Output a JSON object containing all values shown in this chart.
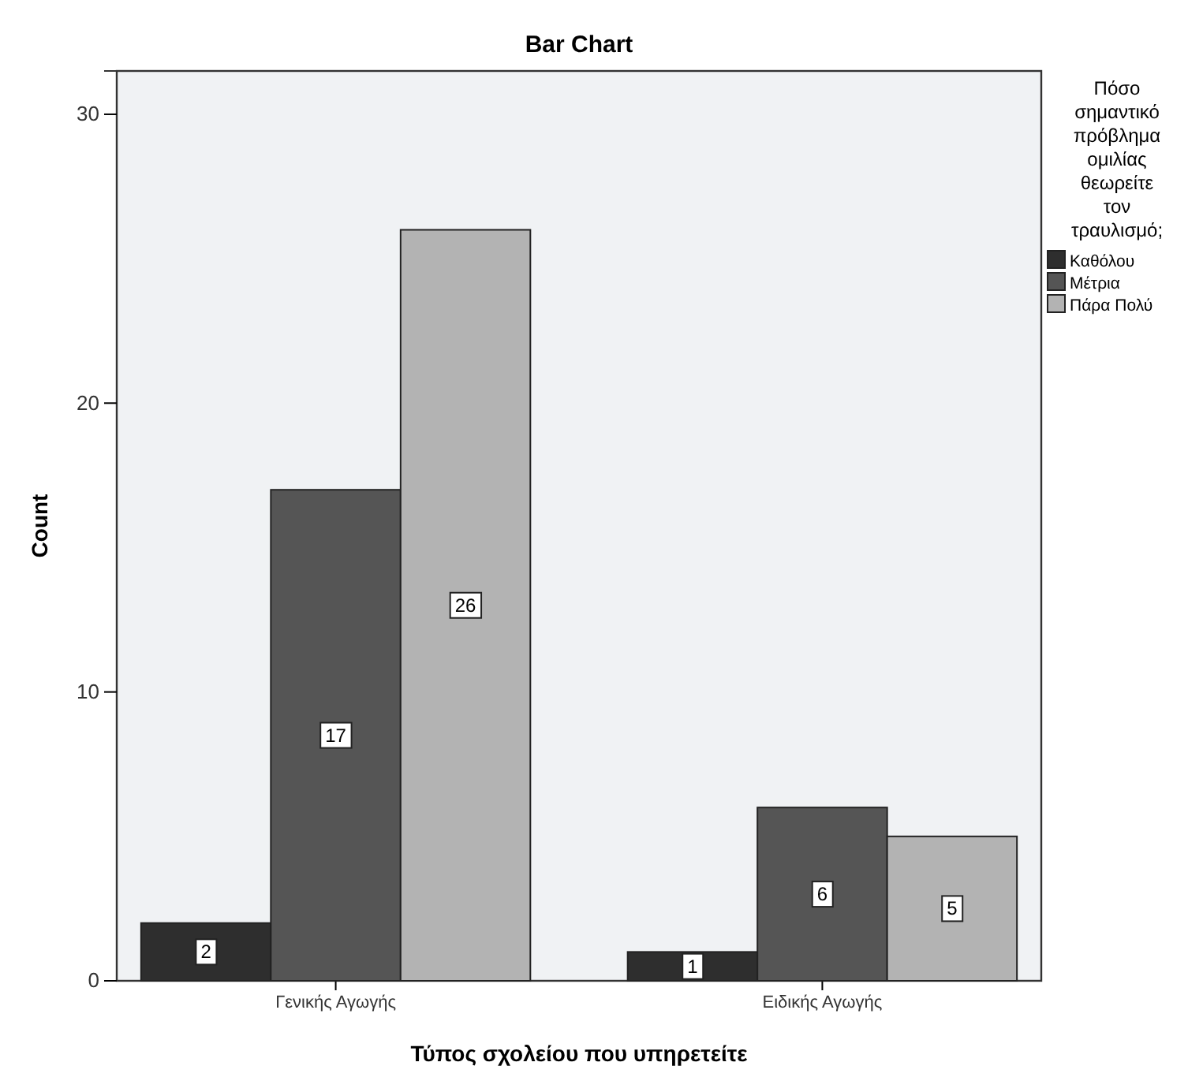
{
  "chart_data": {
    "type": "bar",
    "title": "Bar Chart",
    "xlabel": "Τύπος σχολείου που υπηρετείτε",
    "ylabel": "Count",
    "legend_title": "Πόσο σημαντικό πρόβλημα ομιλίας θεωρείτε τον τραυλισμό;",
    "categories": [
      "Γενικής Αγωγής",
      "Ειδικής Αγωγής"
    ],
    "series": [
      {
        "name": "Καθόλου",
        "color": "#2e2e2e",
        "values": [
          2,
          1
        ]
      },
      {
        "name": "Μέτρια",
        "color": "#555555",
        "values": [
          17,
          6
        ]
      },
      {
        "name": "Πάρα Πολύ",
        "color": "#b3b3b3",
        "values": [
          26,
          5
        ]
      }
    ],
    "ylim": [
      0,
      31.5
    ],
    "yticks": [
      0,
      10,
      20,
      30
    ],
    "data_labels": true,
    "legend": "right",
    "grid": false
  }
}
